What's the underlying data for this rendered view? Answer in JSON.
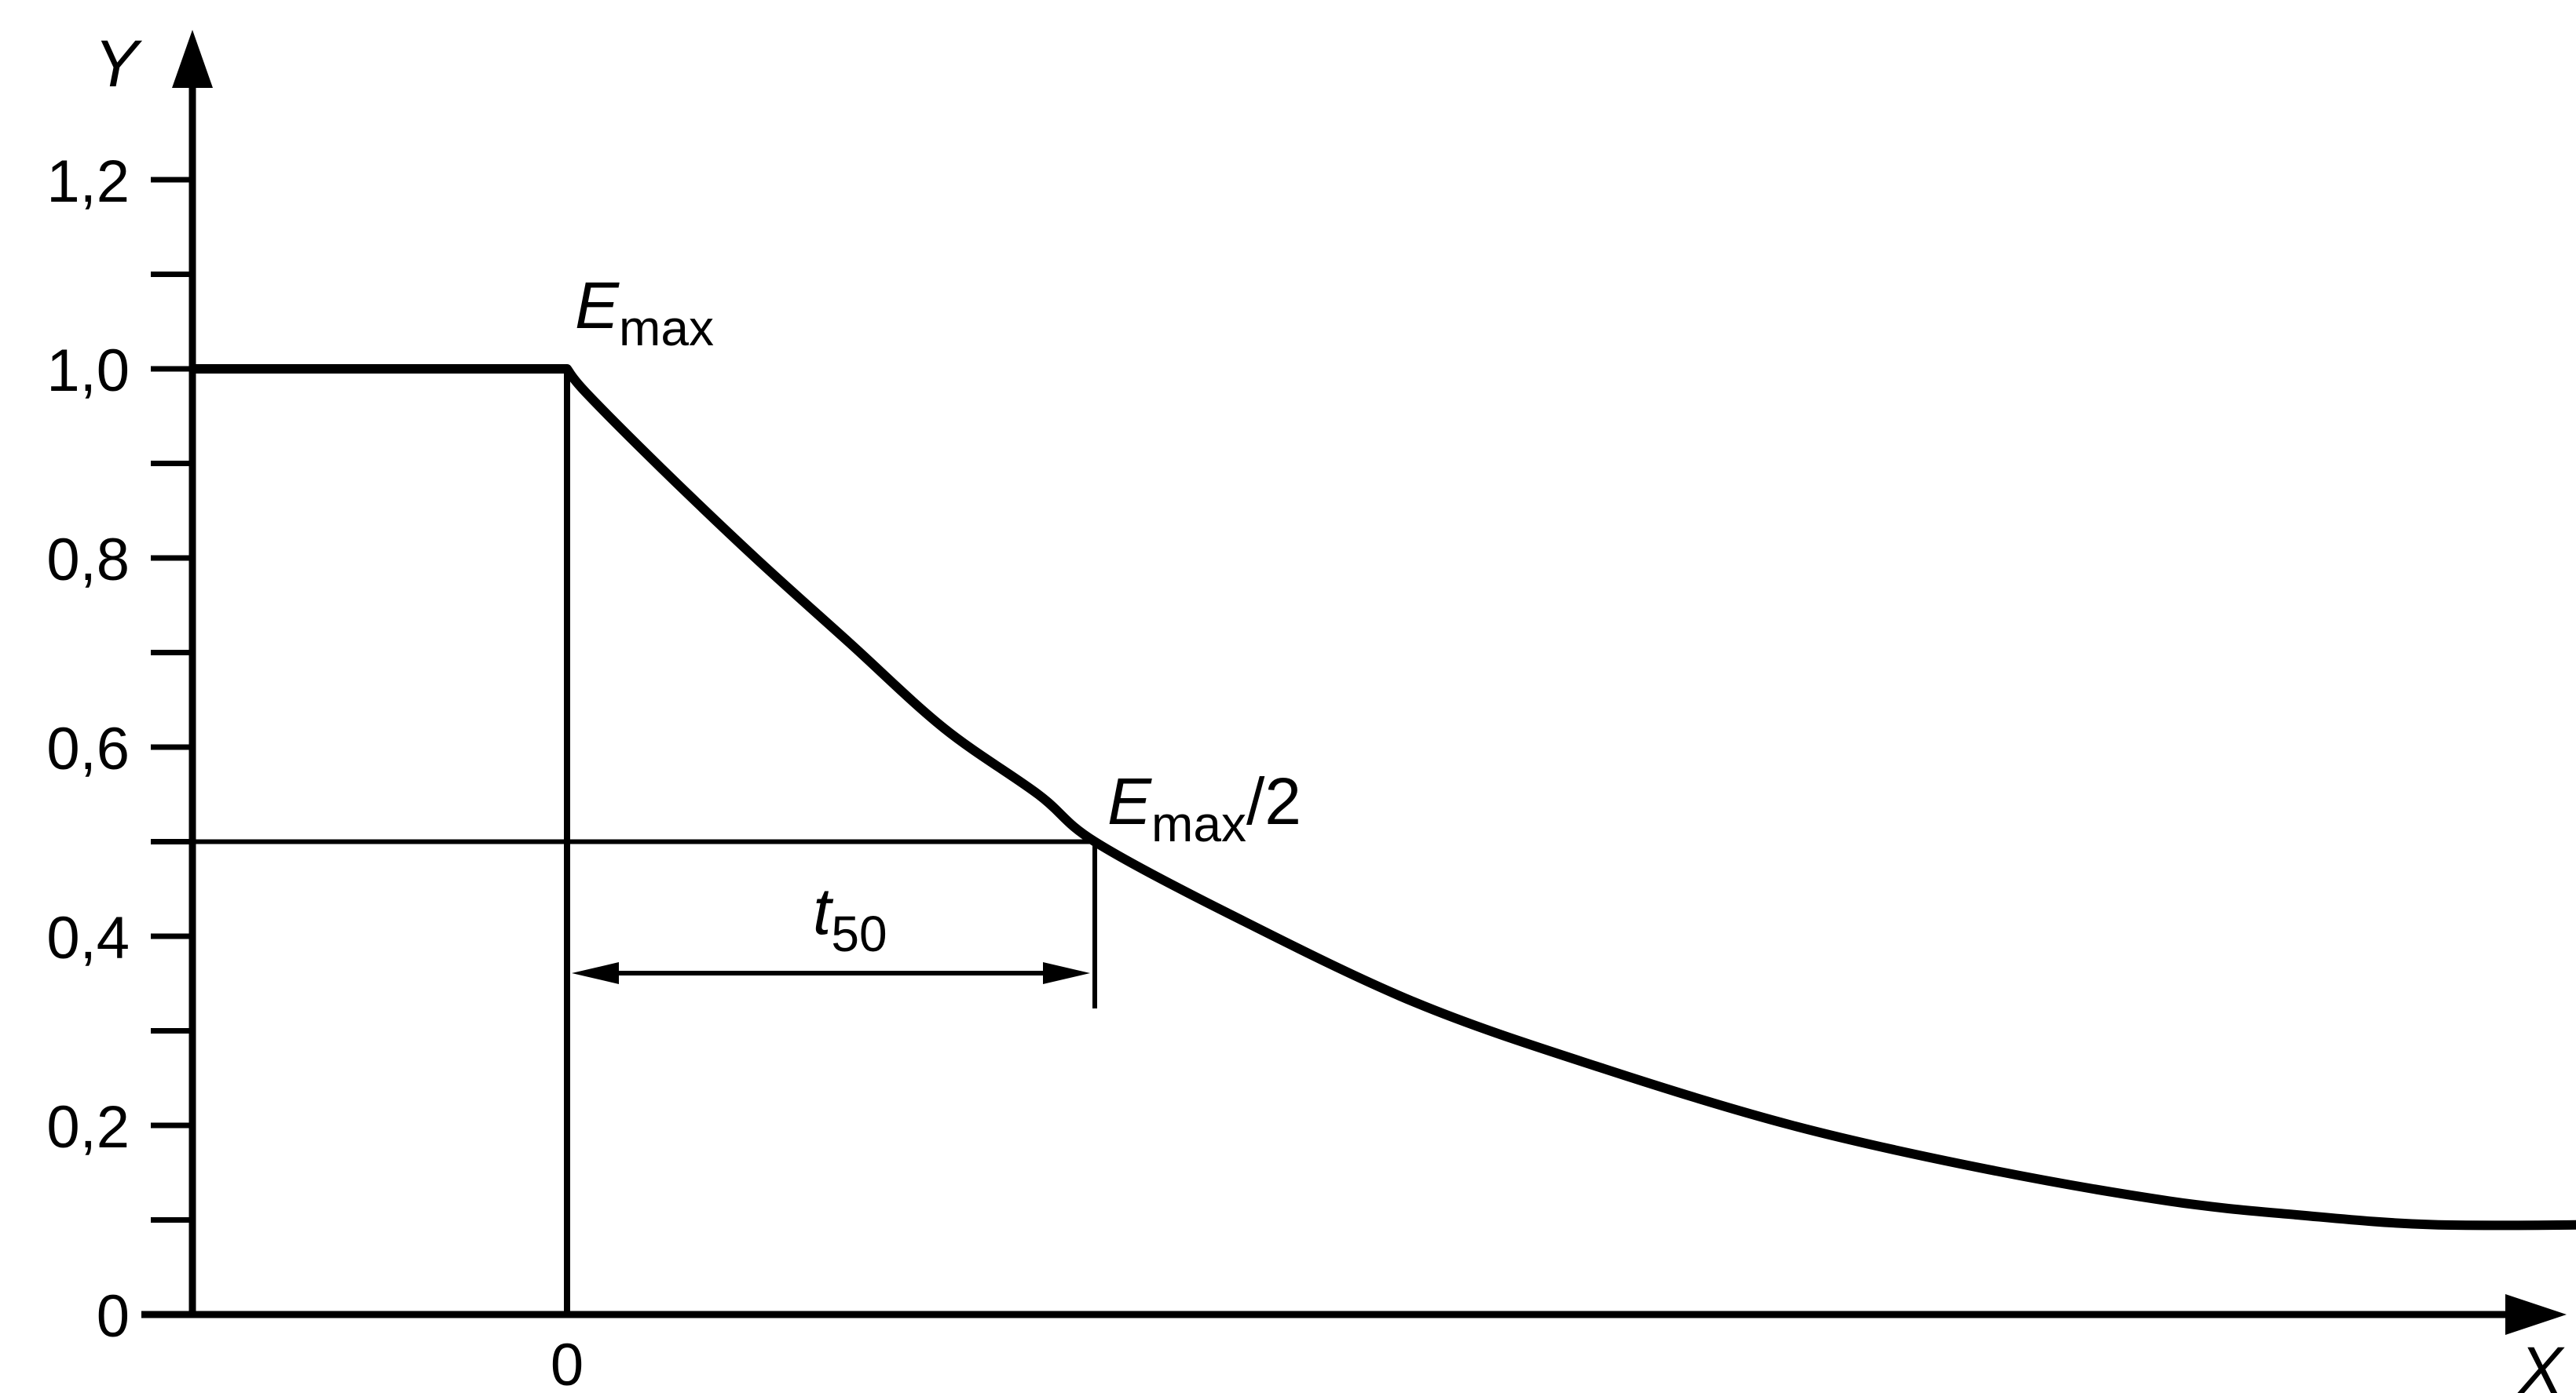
{
  "chart_data": {
    "type": "line",
    "title": "",
    "xlabel": "X",
    "ylabel": "Y",
    "x_ticks": [
      {
        "value": 0,
        "label": "0"
      }
    ],
    "y_ticks": [
      {
        "value": 0,
        "label": "0"
      },
      {
        "value": 0.2,
        "label": "0,2"
      },
      {
        "value": 0.4,
        "label": "0,4"
      },
      {
        "value": 0.6,
        "label": "0,6"
      },
      {
        "value": 0.8,
        "label": "0,8"
      },
      {
        "value": 1.0,
        "label": "1,0"
      },
      {
        "value": 1.2,
        "label": "1,2"
      }
    ],
    "y_minor_step": 0.1,
    "ylim": [
      0,
      1.2
    ],
    "grid": false,
    "series": [
      {
        "points": [
          {
            "x": -1.0,
            "y": 1.0
          },
          {
            "x": 0.0,
            "y": 1.0
          },
          {
            "x": 0.05,
            "y": 0.975
          },
          {
            "x": 0.25,
            "y": 0.895
          },
          {
            "x": 0.5,
            "y": 0.8
          },
          {
            "x": 0.75,
            "y": 0.71
          },
          {
            "x": 1.0,
            "y": 0.62
          },
          {
            "x": 1.25,
            "y": 0.55
          },
          {
            "x": 1.4,
            "y": 0.5
          },
          {
            "x": 1.75,
            "y": 0.425
          },
          {
            "x": 2.25,
            "y": 0.33
          },
          {
            "x": 2.75,
            "y": 0.26
          },
          {
            "x": 3.25,
            "y": 0.2
          },
          {
            "x": 3.75,
            "y": 0.155
          },
          {
            "x": 4.25,
            "y": 0.12
          },
          {
            "x": 4.6,
            "y": 0.105
          },
          {
            "x": 4.95,
            "y": 0.095
          },
          {
            "x": 5.4,
            "y": 0.095
          }
        ]
      }
    ],
    "annotations": {
      "emax": {
        "main": "E",
        "sub": "max",
        "suffix": ""
      },
      "emax_half": {
        "main": "E",
        "sub": "max",
        "suffix": "/2"
      },
      "t50": {
        "main": "t",
        "sub": "50"
      },
      "half_level": 0.5,
      "t50_x": 1.4
    }
  }
}
